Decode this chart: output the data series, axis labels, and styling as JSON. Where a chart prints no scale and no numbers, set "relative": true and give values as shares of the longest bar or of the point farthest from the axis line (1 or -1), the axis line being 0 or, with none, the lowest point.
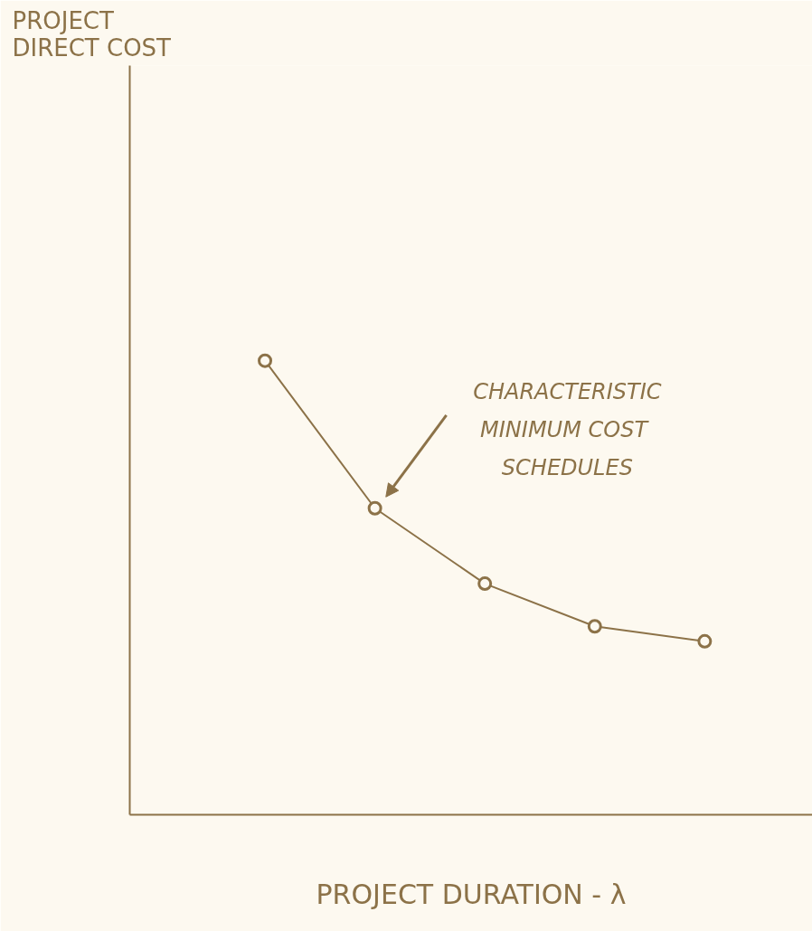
{
  "chart_data": {
    "type": "line",
    "relative": true,
    "xlabel": "PROJECT DURATION - λ",
    "categories": [
      null,
      null,
      null,
      null,
      null
    ],
    "series": [
      {
        "color": "#8c7248",
        "values": [
          1,
          0.675,
          0.509,
          0.415,
          0.382
        ]
      }
    ],
    "marker": "circle",
    "line_style": "solid",
    "annotations": [
      "PROJECT\nDIRECT COST",
      "CHARACTERISTIC\nMINIMUM  COST\nSCHEDULES"
    ]
  }
}
